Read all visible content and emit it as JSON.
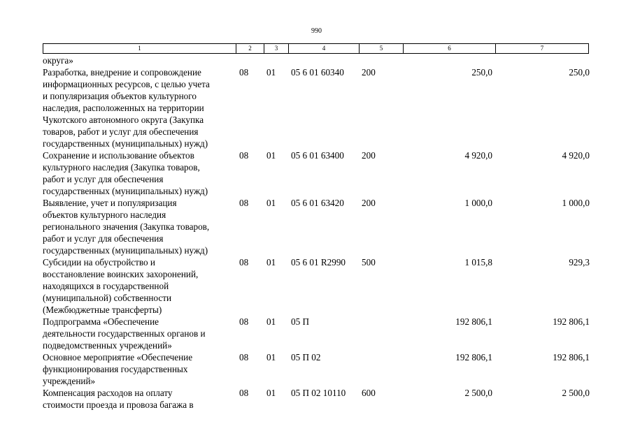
{
  "page_number": "990",
  "header": [
    "1",
    "2",
    "3",
    "4",
    "5",
    "6",
    "7"
  ],
  "rows": [
    {
      "lines": [
        "округа»"
      ],
      "c2": "",
      "c3": "",
      "c4": "",
      "c5": "",
      "c6": "",
      "c7": ""
    },
    {
      "lines": [
        "Разработка, внедрение и сопровождение",
        "информационных ресурсов, с целью учета",
        "и популяризация объектов культурного",
        "наследия, расположенных на территории",
        "Чукотского автономного округа (Закупка",
        "товаров, работ и услуг для обеспечения",
        "государственных (муниципальных) нужд)"
      ],
      "c2": "08",
      "c3": "01",
      "c4": "05 6 01 60340",
      "c5": "200",
      "c6": "250,0",
      "c7": "250,0"
    },
    {
      "lines": [
        "Сохранение и использование объектов",
        "культурного наследия (Закупка товаров,",
        "работ и услуг для обеспечения",
        "государственных (муниципальных) нужд)"
      ],
      "c2": "08",
      "c3": "01",
      "c4": "05 6 01 63400",
      "c5": "200",
      "c6": "4 920,0",
      "c7": "4 920,0"
    },
    {
      "lines": [
        "Выявление, учет и популяризация",
        "объектов культурного наследия",
        "регионального значения (Закупка товаров,",
        "работ и услуг для обеспечения",
        "государственных (муниципальных) нужд)"
      ],
      "c2": "08",
      "c3": "01",
      "c4": "05 6 01 63420",
      "c5": "200",
      "c6": "1 000,0",
      "c7": "1 000,0"
    },
    {
      "lines": [
        "Субсидии на обустройство и",
        "восстановление воинских захоронений,",
        "находящихся в государственной",
        "(муниципальной) собственности",
        "(Межбюджетные трансферты)"
      ],
      "c2": "08",
      "c3": "01",
      "c4": "05 6 01 R2990",
      "c5": "500",
      "c6": "1 015,8",
      "c7": "929,3"
    },
    {
      "lines": [
        "Подпрограмма «Обеспечение",
        "деятельности государственных органов и",
        "подведомственных учреждений»"
      ],
      "c2": "08",
      "c3": "01",
      "c4": "05 П",
      "c5": "",
      "c6": "192 806,1",
      "c7": "192 806,1"
    },
    {
      "lines": [
        "Основное мероприятие «Обеспечение",
        "функционирования государственных",
        "учреждений»"
      ],
      "c2": "08",
      "c3": "01",
      "c4": "05 П 02",
      "c5": "",
      "c6": "192 806,1",
      "c7": "192 806,1"
    },
    {
      "lines": [
        "Компенсация расходов на оплату",
        "стоимости проезда и провоза багажа в"
      ],
      "c2": "08",
      "c3": "01",
      "c4": "05 П 02 10110",
      "c5": "600",
      "c6": "2 500,0",
      "c7": "2 500,0"
    }
  ]
}
